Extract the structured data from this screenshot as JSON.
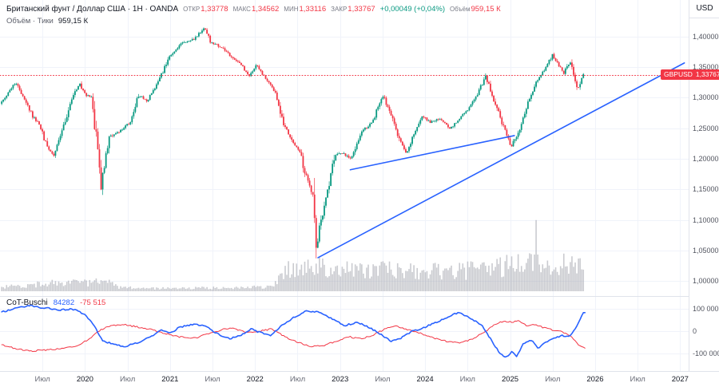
{
  "legend": {
    "title": "Британский фунт / Доллар США · 1H · OANDA",
    "ohlc": [
      {
        "label": "ОТКР",
        "value": "1,33778"
      },
      {
        "label": "МАКС",
        "value": "1,34562"
      },
      {
        "label": "МИН",
        "value": "1,33116"
      },
      {
        "label": "ЗАКР",
        "value": "1,33767"
      }
    ],
    "change": "+0,00049 (+0,04%)",
    "volume_label": "Объём",
    "volume_value": "959,15 К",
    "row2_label": "Объём · Тики",
    "row2_value": "959,15 К"
  },
  "cot": {
    "title": "CoT-Buschi",
    "value_blue": "84282",
    "value_red": "-75 515"
  },
  "price_badge": {
    "symbol": "GBPUSD",
    "value": "1,33767"
  },
  "axes": {
    "currency": "USD",
    "price_ticks": [
      {
        "label": "1,40000",
        "value": 1.4
      },
      {
        "label": "1,35000",
        "value": 1.35
      },
      {
        "label": "1,30000",
        "value": 1.3
      },
      {
        "label": "1,25000",
        "value": 1.25
      },
      {
        "label": "1,20000",
        "value": 1.2
      },
      {
        "label": "1,15000",
        "value": 1.15
      },
      {
        "label": "1,10000",
        "value": 1.1
      },
      {
        "label": "1,05000",
        "value": 1.05
      },
      {
        "label": "1,00000",
        "value": 1.0
      }
    ],
    "time_ticks": [
      {
        "label": "Июл",
        "t": 2019.5
      },
      {
        "label": "2020",
        "t": 2020.0
      },
      {
        "label": "Июл",
        "t": 2020.5
      },
      {
        "label": "2021",
        "t": 2021.0
      },
      {
        "label": "Июл",
        "t": 2021.5
      },
      {
        "label": "2022",
        "t": 2022.0
      },
      {
        "label": "Июл",
        "t": 2022.5
      },
      {
        "label": "2023",
        "t": 2023.0
      },
      {
        "label": "Июл",
        "t": 2023.5
      },
      {
        "label": "2024",
        "t": 2024.0
      },
      {
        "label": "Июл",
        "t": 2024.5
      },
      {
        "label": "2025",
        "t": 2025.0
      },
      {
        "label": "Июл",
        "t": 2025.5
      },
      {
        "label": "2026",
        "t": 2026.0
      },
      {
        "label": "Июл",
        "t": 2026.5
      },
      {
        "label": "2027",
        "t": 2027.0
      }
    ],
    "cot_ticks": [
      {
        "label": "100 000",
        "value": 100000
      },
      {
        "label": "0",
        "value": 0
      },
      {
        "label": "-100 000",
        "value": -100000
      }
    ]
  },
  "chart_data": {
    "type": "candlestick+volume+oscillator",
    "symbol": "GBPUSD",
    "interval_label": "1H",
    "exchange": "OANDA",
    "current_price": 1.33767,
    "time_range": [
      2019.0,
      2027.1
    ],
    "candles_t_range": [
      2019.02,
      2025.87
    ],
    "price_ylim": [
      0.9752,
      1.4601
    ],
    "price_path_anchors": [
      [
        2019.02,
        1.29
      ],
      [
        2019.1,
        1.305
      ],
      [
        2019.2,
        1.325
      ],
      [
        2019.3,
        1.3
      ],
      [
        2019.4,
        1.27
      ],
      [
        2019.49,
        1.255
      ],
      [
        2019.58,
        1.215
      ],
      [
        2019.65,
        1.205
      ],
      [
        2019.75,
        1.245
      ],
      [
        2019.85,
        1.29
      ],
      [
        2019.95,
        1.325
      ],
      [
        2020.02,
        1.305
      ],
      [
        2020.1,
        1.3
      ],
      [
        2020.21,
        1.155
      ],
      [
        2020.3,
        1.235
      ],
      [
        2020.42,
        1.245
      ],
      [
        2020.55,
        1.26
      ],
      [
        2020.65,
        1.305
      ],
      [
        2020.75,
        1.295
      ],
      [
        2020.88,
        1.325
      ],
      [
        2021.0,
        1.365
      ],
      [
        2021.15,
        1.39
      ],
      [
        2021.3,
        1.395
      ],
      [
        2021.42,
        1.415
      ],
      [
        2021.5,
        1.39
      ],
      [
        2021.6,
        1.385
      ],
      [
        2021.72,
        1.37
      ],
      [
        2021.85,
        1.355
      ],
      [
        2021.95,
        1.335
      ],
      [
        2022.03,
        1.355
      ],
      [
        2022.15,
        1.33
      ],
      [
        2022.25,
        1.31
      ],
      [
        2022.35,
        1.26
      ],
      [
        2022.45,
        1.23
      ],
      [
        2022.55,
        1.21
      ],
      [
        2022.62,
        1.17
      ],
      [
        2022.7,
        1.14
      ],
      [
        2022.74,
        1.05
      ],
      [
        2022.78,
        1.09
      ],
      [
        2022.85,
        1.13
      ],
      [
        2022.95,
        1.205
      ],
      [
        2023.05,
        1.21
      ],
      [
        2023.15,
        1.2
      ],
      [
        2023.28,
        1.245
      ],
      [
        2023.4,
        1.26
      ],
      [
        2023.52,
        1.305
      ],
      [
        2023.62,
        1.27
      ],
      [
        2023.72,
        1.23
      ],
      [
        2023.8,
        1.21
      ],
      [
        2023.9,
        1.245
      ],
      [
        2023.98,
        1.27
      ],
      [
        2024.08,
        1.26
      ],
      [
        2024.2,
        1.265
      ],
      [
        2024.32,
        1.25
      ],
      [
        2024.45,
        1.27
      ],
      [
        2024.55,
        1.285
      ],
      [
        2024.65,
        1.31
      ],
      [
        2024.73,
        1.335
      ],
      [
        2024.82,
        1.3
      ],
      [
        2024.92,
        1.26
      ],
      [
        2025.03,
        1.22
      ],
      [
        2025.12,
        1.245
      ],
      [
        2025.22,
        1.29
      ],
      [
        2025.32,
        1.325
      ],
      [
        2025.42,
        1.345
      ],
      [
        2025.52,
        1.37
      ],
      [
        2025.58,
        1.355
      ],
      [
        2025.65,
        1.34
      ],
      [
        2025.72,
        1.36
      ],
      [
        2025.78,
        1.33
      ],
      [
        2025.82,
        1.315
      ],
      [
        2025.87,
        1.3377
      ]
    ],
    "volume_anchors": [
      [
        2019.02,
        0.06
      ],
      [
        2019.3,
        0.08
      ],
      [
        2019.49,
        0.1
      ],
      [
        2019.7,
        0.13
      ],
      [
        2019.9,
        0.11
      ],
      [
        2020.1,
        0.12
      ],
      [
        2020.25,
        0.14
      ],
      [
        2020.4,
        0.05
      ],
      [
        2020.7,
        0.04
      ],
      [
        2021.0,
        0.04
      ],
      [
        2021.5,
        0.045
      ],
      [
        2021.9,
        0.05
      ],
      [
        2022.1,
        0.06
      ],
      [
        2022.25,
        0.1
      ],
      [
        2022.35,
        0.28
      ],
      [
        2022.5,
        0.3
      ],
      [
        2022.65,
        0.33
      ],
      [
        2022.78,
        0.36
      ],
      [
        2022.9,
        0.32
      ],
      [
        2023.1,
        0.3
      ],
      [
        2023.3,
        0.28
      ],
      [
        2023.5,
        0.3
      ],
      [
        2023.7,
        0.27
      ],
      [
        2023.9,
        0.26
      ],
      [
        2024.1,
        0.27
      ],
      [
        2024.3,
        0.26
      ],
      [
        2024.5,
        0.28
      ],
      [
        2024.7,
        0.3
      ],
      [
        2024.9,
        0.34
      ],
      [
        2025.05,
        0.38
      ],
      [
        2025.2,
        0.36
      ],
      [
        2025.3,
        0.42
      ],
      [
        2025.45,
        0.36
      ],
      [
        2025.6,
        0.4
      ],
      [
        2025.75,
        0.33
      ],
      [
        2025.87,
        0.3
      ]
    ],
    "volume_spike": {
      "t": 2025.3,
      "v": 0.97
    },
    "cot_series": {
      "blue": [
        [
          2019.02,
          85000
        ],
        [
          2019.2,
          105000
        ],
        [
          2019.35,
          115000
        ],
        [
          2019.5,
          105000
        ],
        [
          2019.7,
          95000
        ],
        [
          2019.85,
          100000
        ],
        [
          2020.0,
          75000
        ],
        [
          2020.1,
          30000
        ],
        [
          2020.2,
          -40000
        ],
        [
          2020.3,
          -55000
        ],
        [
          2020.45,
          -70000
        ],
        [
          2020.6,
          -55000
        ],
        [
          2020.75,
          -30000
        ],
        [
          2020.9,
          5000
        ],
        [
          2021.0,
          -10000
        ],
        [
          2021.1,
          15000
        ],
        [
          2021.25,
          30000
        ],
        [
          2021.4,
          25000
        ],
        [
          2021.55,
          -10000
        ],
        [
          2021.7,
          -35000
        ],
        [
          2021.85,
          -15000
        ],
        [
          2021.95,
          10000
        ],
        [
          2022.05,
          -5000
        ],
        [
          2022.18,
          -20000
        ],
        [
          2022.3,
          20000
        ],
        [
          2022.45,
          60000
        ],
        [
          2022.6,
          90000
        ],
        [
          2022.75,
          85000
        ],
        [
          2022.9,
          55000
        ],
        [
          2023.05,
          25000
        ],
        [
          2023.2,
          40000
        ],
        [
          2023.35,
          15000
        ],
        [
          2023.5,
          -20000
        ],
        [
          2023.6,
          -45000
        ],
        [
          2023.72,
          -30000
        ],
        [
          2023.85,
          0
        ],
        [
          2023.95,
          10000
        ],
        [
          2024.1,
          35000
        ],
        [
          2024.25,
          60000
        ],
        [
          2024.4,
          85000
        ],
        [
          2024.55,
          55000
        ],
        [
          2024.68,
          20000
        ],
        [
          2024.78,
          -40000
        ],
        [
          2024.88,
          -100000
        ],
        [
          2024.95,
          -120000
        ],
        [
          2025.02,
          -90000
        ],
        [
          2025.08,
          -115000
        ],
        [
          2025.15,
          -60000
        ],
        [
          2025.25,
          -40000
        ],
        [
          2025.33,
          -75000
        ],
        [
          2025.42,
          -50000
        ],
        [
          2025.52,
          -30000
        ],
        [
          2025.62,
          -20000
        ],
        [
          2025.7,
          -25000
        ],
        [
          2025.78,
          20000
        ],
        [
          2025.83,
          60000
        ],
        [
          2025.87,
          84282
        ]
      ],
      "red": [
        [
          2019.02,
          -60000
        ],
        [
          2019.2,
          -80000
        ],
        [
          2019.35,
          -90000
        ],
        [
          2019.5,
          -85000
        ],
        [
          2019.7,
          -80000
        ],
        [
          2019.9,
          -65000
        ],
        [
          2020.05,
          -35000
        ],
        [
          2020.18,
          5000
        ],
        [
          2020.3,
          25000
        ],
        [
          2020.45,
          30000
        ],
        [
          2020.6,
          20000
        ],
        [
          2020.8,
          5000
        ],
        [
          2020.95,
          -10000
        ],
        [
          2021.1,
          -25000
        ],
        [
          2021.3,
          -30000
        ],
        [
          2021.5,
          -5000
        ],
        [
          2021.7,
          15000
        ],
        [
          2021.9,
          -5000
        ],
        [
          2022.05,
          0
        ],
        [
          2022.2,
          10000
        ],
        [
          2022.35,
          -25000
        ],
        [
          2022.5,
          -50000
        ],
        [
          2022.65,
          -70000
        ],
        [
          2022.8,
          -65000
        ],
        [
          2022.95,
          -45000
        ],
        [
          2023.1,
          -25000
        ],
        [
          2023.25,
          -35000
        ],
        [
          2023.4,
          -15000
        ],
        [
          2023.55,
          15000
        ],
        [
          2023.65,
          25000
        ],
        [
          2023.8,
          5000
        ],
        [
          2023.95,
          -10000
        ],
        [
          2024.1,
          -30000
        ],
        [
          2024.25,
          -45000
        ],
        [
          2024.4,
          -55000
        ],
        [
          2024.55,
          -35000
        ],
        [
          2024.7,
          -5000
        ],
        [
          2024.82,
          30000
        ],
        [
          2024.92,
          45000
        ],
        [
          2025.02,
          40000
        ],
        [
          2025.1,
          45000
        ],
        [
          2025.2,
          25000
        ],
        [
          2025.3,
          30000
        ],
        [
          2025.4,
          15000
        ],
        [
          2025.5,
          5000
        ],
        [
          2025.6,
          0
        ],
        [
          2025.7,
          -20000
        ],
        [
          2025.78,
          -50000
        ],
        [
          2025.83,
          -70000
        ],
        [
          2025.87,
          -75515
        ]
      ]
    },
    "trendlines": [
      {
        "from": [
          2022.74,
          1.038
        ],
        "to": [
          2027.05,
          1.357
        ]
      },
      {
        "from": [
          2023.12,
          1.182
        ],
        "to": [
          2025.05,
          1.238
        ]
      }
    ],
    "colors": {
      "up": "#089981",
      "down": "#f23645",
      "volume": "rgba(149,152,161,0.5)",
      "trend": "#2962ff",
      "cot_blue": "#2962ff",
      "cot_red": "#f23645",
      "grid": "#f0f3fa",
      "separator": "#e0e3eb",
      "price_line": "#f23645"
    }
  }
}
